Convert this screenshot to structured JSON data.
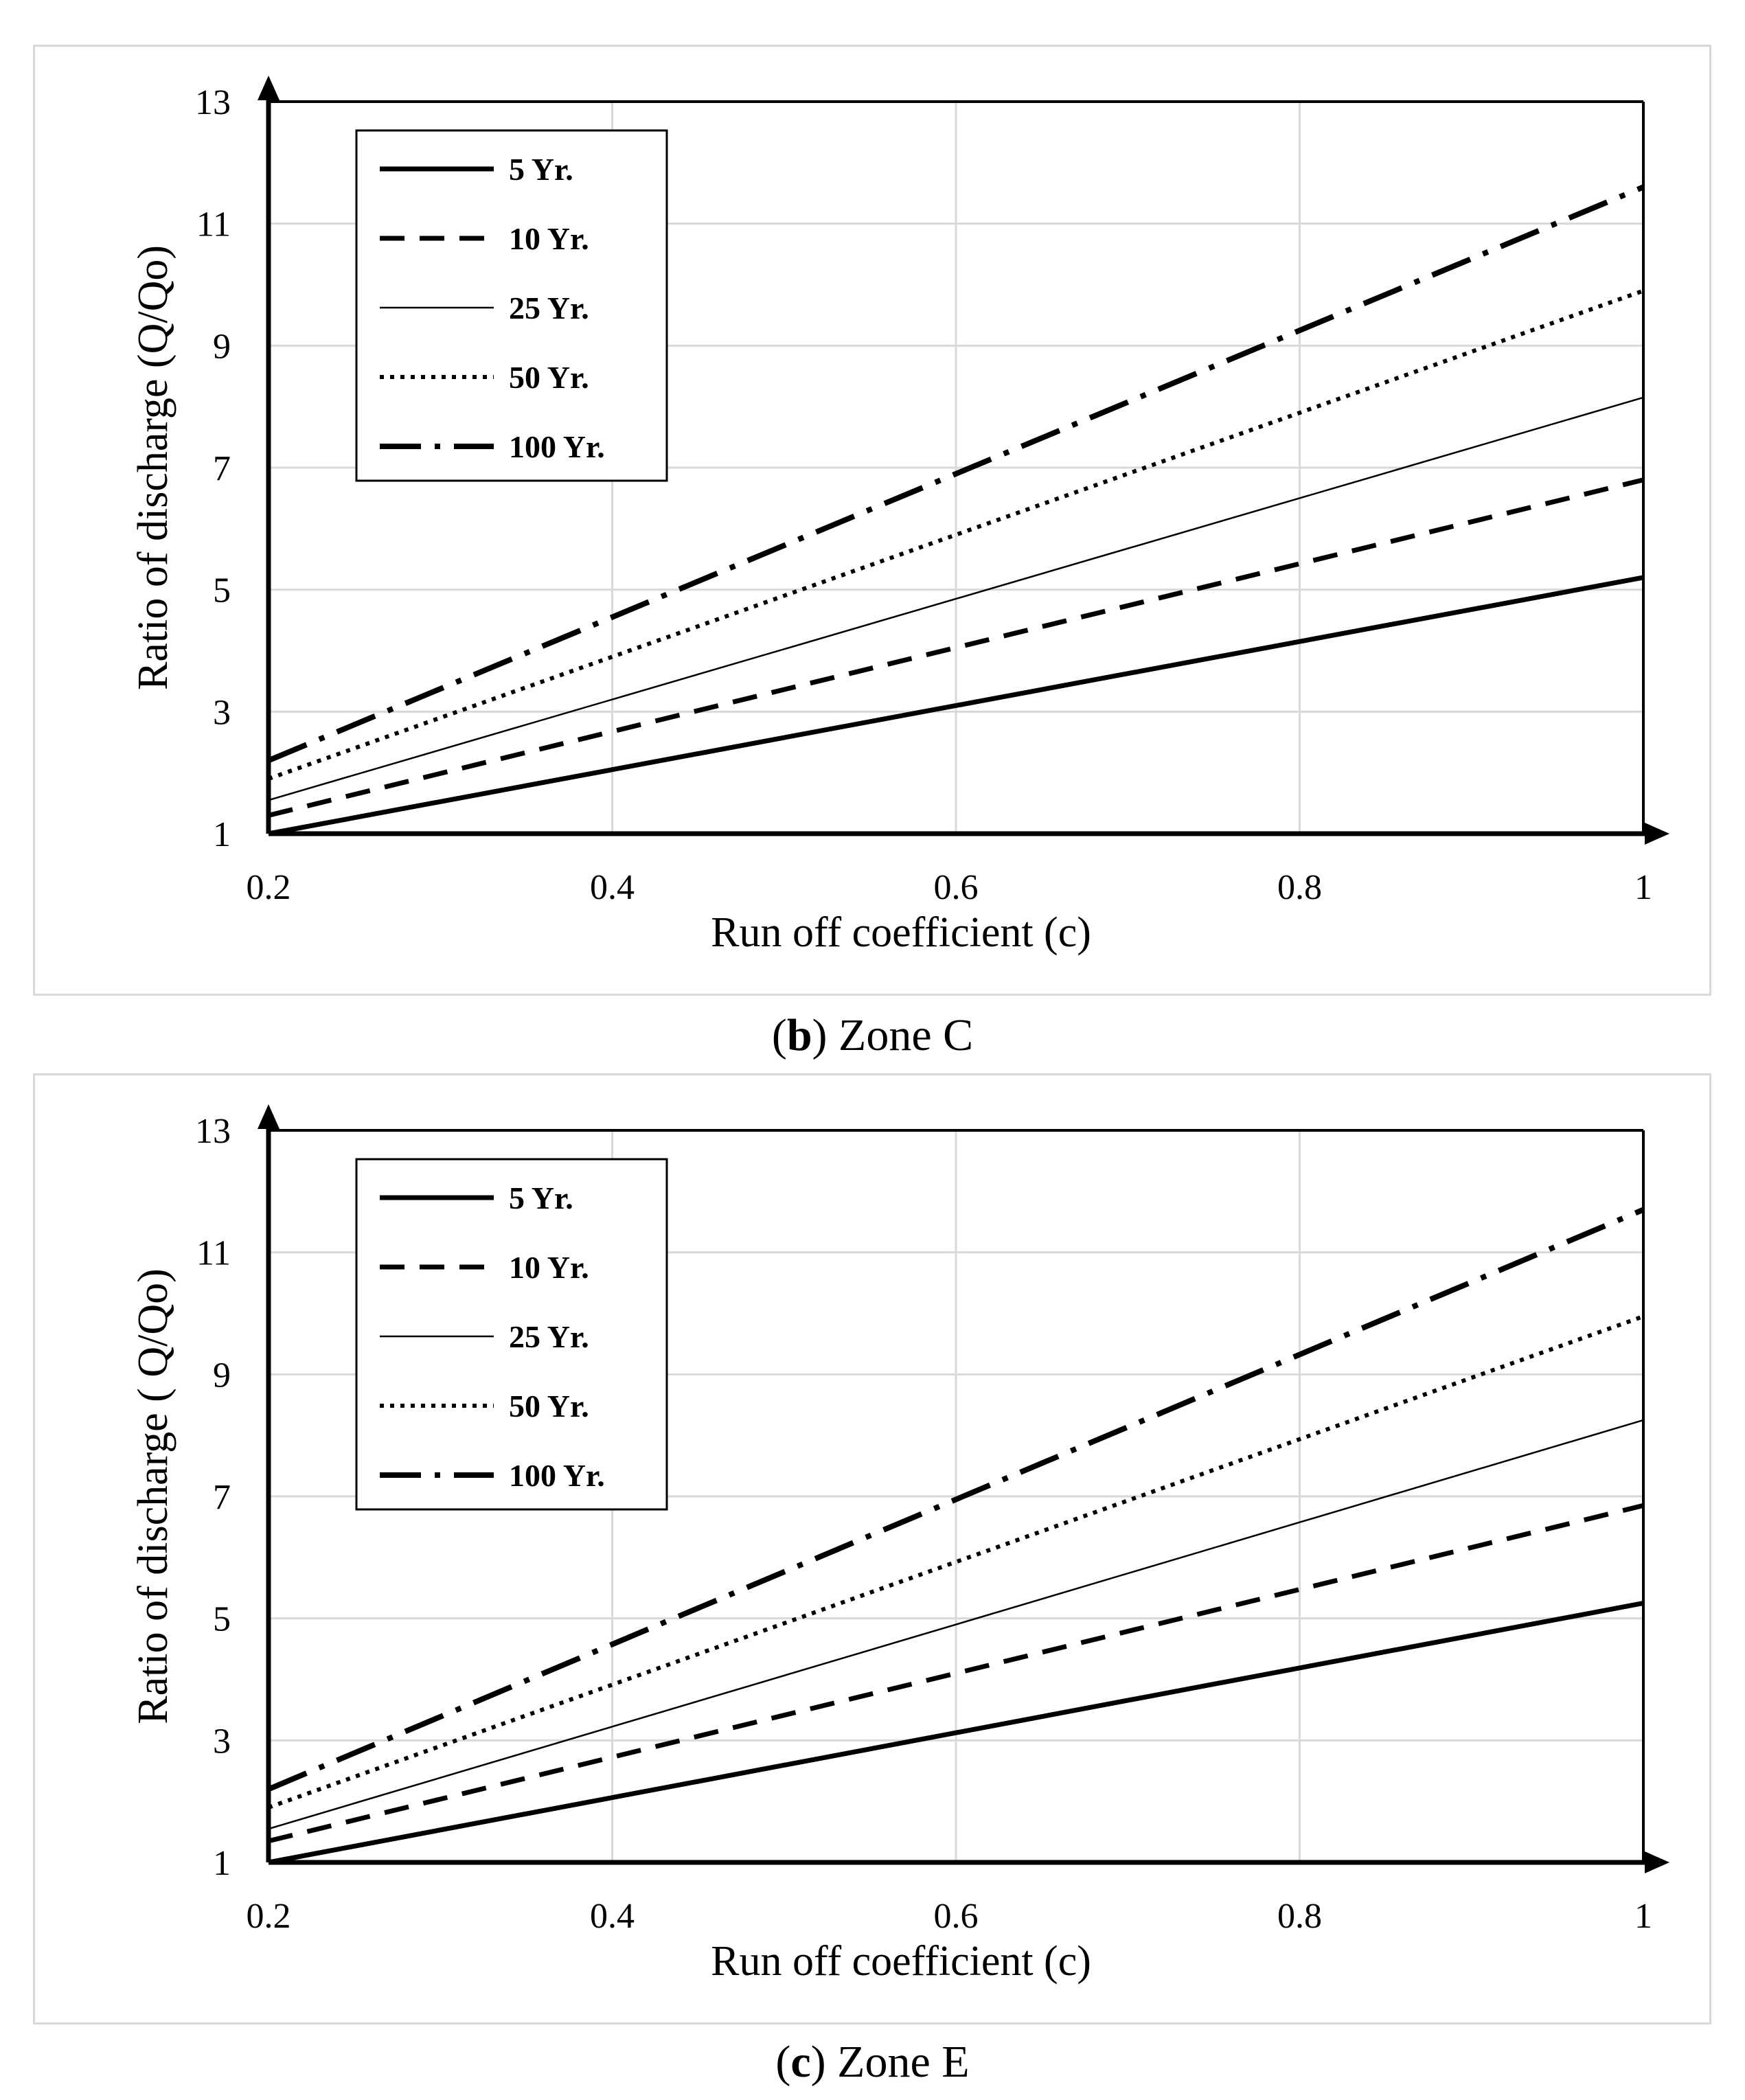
{
  "chart_data": [
    {
      "type": "line",
      "panel_label": "b",
      "caption_text": "Zone C",
      "xlabel": "Run off coefficient  (c)",
      "ylabel": "Ratio of discharge (Q/Qo)",
      "xlim": [
        0.2,
        1
      ],
      "ylim": [
        1,
        13
      ],
      "xticks": [
        "0.2",
        "0.4",
        "0.6",
        "0.8",
        "1"
      ],
      "yticks": [
        "1",
        "3",
        "5",
        "7",
        "9",
        "11",
        "13"
      ],
      "grid": true,
      "legend_position": "top-left",
      "series": [
        {
          "name": "5 Yr.",
          "style": "solid-thick",
          "x": [
            0.2,
            1.0
          ],
          "y": [
            1.0,
            5.2
          ]
        },
        {
          "name": "10 Yr.",
          "style": "dashed",
          "x": [
            0.2,
            1.0
          ],
          "y": [
            1.3,
            6.8
          ]
        },
        {
          "name": "25 Yr.",
          "style": "solid-thin",
          "x": [
            0.2,
            1.0
          ],
          "y": [
            1.55,
            8.15
          ]
        },
        {
          "name": "50 Yr.",
          "style": "dotted",
          "x": [
            0.2,
            1.0
          ],
          "y": [
            1.9,
            9.9
          ]
        },
        {
          "name": "100 Yr.",
          "style": "dash-dot",
          "x": [
            0.2,
            1.0
          ],
          "y": [
            2.2,
            11.6
          ]
        }
      ]
    },
    {
      "type": "line",
      "panel_label": "c",
      "caption_text": "Zone E",
      "xlabel": "Run off coefficient  (c)",
      "ylabel": "Ratio of discharge ( Q/Qo)",
      "xlim": [
        0.2,
        1
      ],
      "ylim": [
        1,
        13
      ],
      "xticks": [
        "0.2",
        "0.4",
        "0.6",
        "0.8",
        "1"
      ],
      "yticks": [
        "1",
        "3",
        "5",
        "7",
        "9",
        "11",
        "13"
      ],
      "grid": true,
      "legend_position": "top-left",
      "series": [
        {
          "name": "5 Yr.",
          "style": "solid-thick",
          "x": [
            0.2,
            1.0
          ],
          "y": [
            1.0,
            5.25
          ]
        },
        {
          "name": "10 Yr.",
          "style": "dashed",
          "x": [
            0.2,
            1.0
          ],
          "y": [
            1.35,
            6.85
          ]
        },
        {
          "name": "25 Yr.",
          "style": "solid-thin",
          "x": [
            0.2,
            1.0
          ],
          "y": [
            1.55,
            8.25
          ]
        },
        {
          "name": "50 Yr.",
          "style": "dotted",
          "x": [
            0.2,
            1.0
          ],
          "y": [
            1.9,
            9.95
          ]
        },
        {
          "name": "100 Yr.",
          "style": "dash-dot",
          "x": [
            0.2,
            1.0
          ],
          "y": [
            2.2,
            11.7
          ]
        }
      ]
    }
  ]
}
